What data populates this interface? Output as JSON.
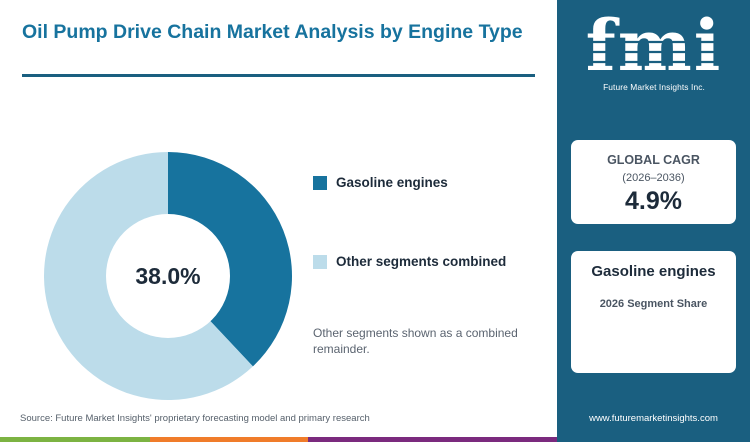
{
  "title": "Oil Pump Drive Chain Market Analysis by Engine Type",
  "chart_data": {
    "type": "pie",
    "donut": true,
    "title": "Oil Pump Drive Chain Market Analysis by Engine Type",
    "center_label": "38.0%",
    "categories": [
      "Gasoline engines",
      "Other segments combined"
    ],
    "values": [
      38.0,
      62.0
    ],
    "colors": [
      "#17739e",
      "#bcdcea"
    ],
    "legend": "right"
  },
  "note": "Other segments shown as a combined remainder.",
  "source": "Source: Future Market Insights' proprietary forecasting model and primary research",
  "sidebar": {
    "logo_text": "fmi",
    "logo_subtitle": "Future Market Insights Inc.",
    "cagr_label": "GLOBAL CAGR",
    "cagr_period": "(2026–2036)",
    "cagr_value": "4.9%",
    "segment_title": "Gasoline engines",
    "segment_subtitle": "2026 Segment Share",
    "website": "www.futuremarketinsights.com"
  },
  "colors": {
    "accent": "#17739e",
    "sidebar_bg": "#1a5f80",
    "bar_green": "#7cb342",
    "bar_orange": "#f07c2a",
    "bar_purple": "#7b2a7e"
  }
}
